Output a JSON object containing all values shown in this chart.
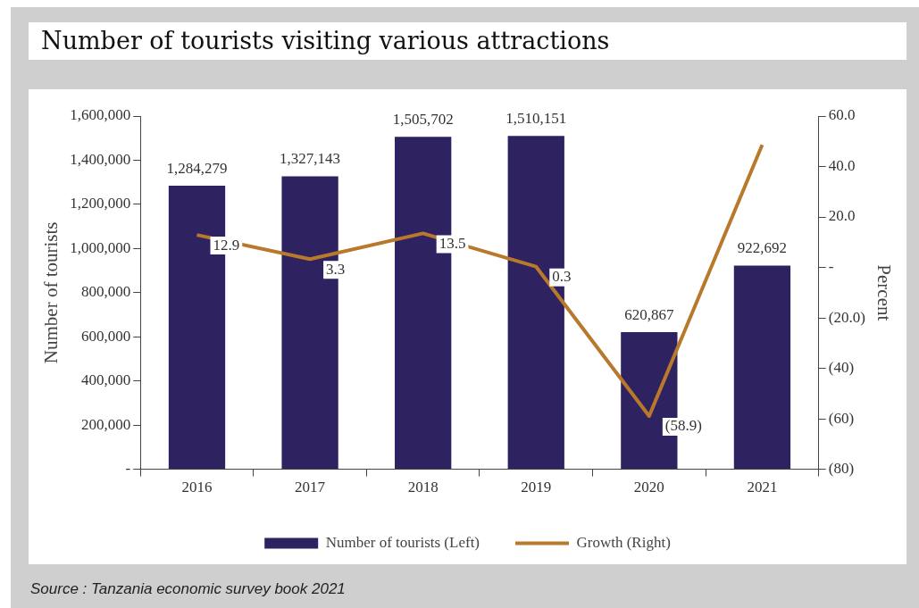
{
  "chart_data": {
    "type": "bar",
    "title": "Number of tourists visiting various attractions",
    "ylabel": "Number of tourists",
    "y2label": "Percent",
    "categories": [
      "2016",
      "2017",
      "2018",
      "2019",
      "2020",
      "2021"
    ],
    "series": [
      {
        "name": "Number of tourists (Left)",
        "color": "#2e2260",
        "values": [
          1284279,
          1327143,
          1505702,
          1510151,
          620867,
          922692
        ],
        "value_labels": [
          "1,284,279",
          "1,327,143",
          "1,505,702",
          "1,510,151",
          "620,867",
          "922,692"
        ]
      },
      {
        "name": "Growth (Right)",
        "type": "line",
        "axis": "y2",
        "color": "#b8792c",
        "values": [
          12.9,
          3.3,
          13.5,
          0.3,
          -58.9,
          48.6
        ],
        "value_labels": [
          "12.9",
          "3.3",
          "13.5",
          "0.3",
          "(58.9)",
          null
        ]
      }
    ],
    "ylim": [
      0,
      1600000
    ],
    "yticks": [
      {
        "value": 0,
        "label": "-"
      },
      {
        "value": 200000,
        "label": "200,000"
      },
      {
        "value": 400000,
        "label": "400,000"
      },
      {
        "value": 600000,
        "label": "600,000"
      },
      {
        "value": 800000,
        "label": "800,000"
      },
      {
        "value": 1000000,
        "label": "1,000,000"
      },
      {
        "value": 1200000,
        "label": "1,200,000"
      },
      {
        "value": 1400000,
        "label": "1,400,000"
      },
      {
        "value": 1600000,
        "label": "1,600,000"
      }
    ],
    "y2lim": [
      -80,
      60
    ],
    "y2ticks": [
      {
        "value": -80,
        "label": "(80)"
      },
      {
        "value": -60,
        "label": "(60)"
      },
      {
        "value": -40,
        "label": "(40)"
      },
      {
        "value": -20,
        "label": "(20.0)"
      },
      {
        "value": 0,
        "label": "-"
      },
      {
        "value": 20,
        "label": "20.0"
      },
      {
        "value": 40,
        "label": "40.0"
      },
      {
        "value": 60,
        "label": "60.0"
      }
    ],
    "grid": false,
    "legend": "bottom",
    "marker": "none",
    "annotations": [
      "Source : Tanzania economic survey book 2021"
    ]
  }
}
